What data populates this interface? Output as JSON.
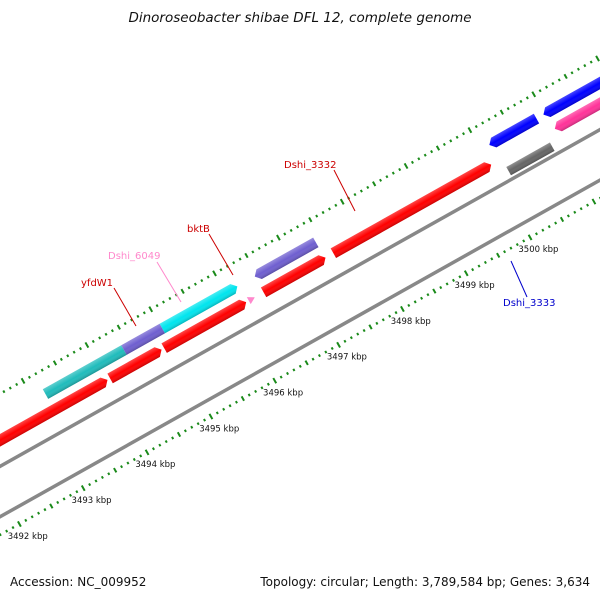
{
  "title": "Dinoroseobacter shibae DFL 12, complete genome",
  "footer": {
    "accession": "Accession: NC_009952",
    "summary": "Topology: circular; Length: 3,789,584 bp; Genes: 3,634"
  },
  "colors": {
    "forward_cds": "#ff0000",
    "reverse_cds": "#0000ff",
    "rna": "#ff3399",
    "other": "#6f5fd0",
    "cyan_feature": "#00e5ee",
    "teal_feature": "#20bcbc",
    "gray_feature": "#666666",
    "backbone": "#888888",
    "tick": "#1a8a1a"
  },
  "scale_labels": [
    {
      "kbp": 3492,
      "text": "3492 kbp"
    },
    {
      "kbp": 3493,
      "text": "3493 kbp"
    },
    {
      "kbp": 3494,
      "text": "3494 kbp"
    },
    {
      "kbp": 3495,
      "text": "3495 kbp"
    },
    {
      "kbp": 3496,
      "text": "3496 kbp"
    },
    {
      "kbp": 3497,
      "text": "3497 kbp"
    },
    {
      "kbp": 3498,
      "text": "3498 kbp"
    },
    {
      "kbp": 3499,
      "text": "3499 kbp"
    },
    {
      "kbp": 3500,
      "text": "3500 kbp"
    }
  ],
  "gene_labels": [
    {
      "name": "yfdW1",
      "color": "#cc0000"
    },
    {
      "name": "Dshi_6049",
      "color": "#ff88cc"
    },
    {
      "name": "bktB",
      "color": "#cc0000"
    },
    {
      "name": "Dshi_3332",
      "color": "#cc0000"
    },
    {
      "name": "Dshi_3333",
      "color": "#0000cc"
    }
  ]
}
